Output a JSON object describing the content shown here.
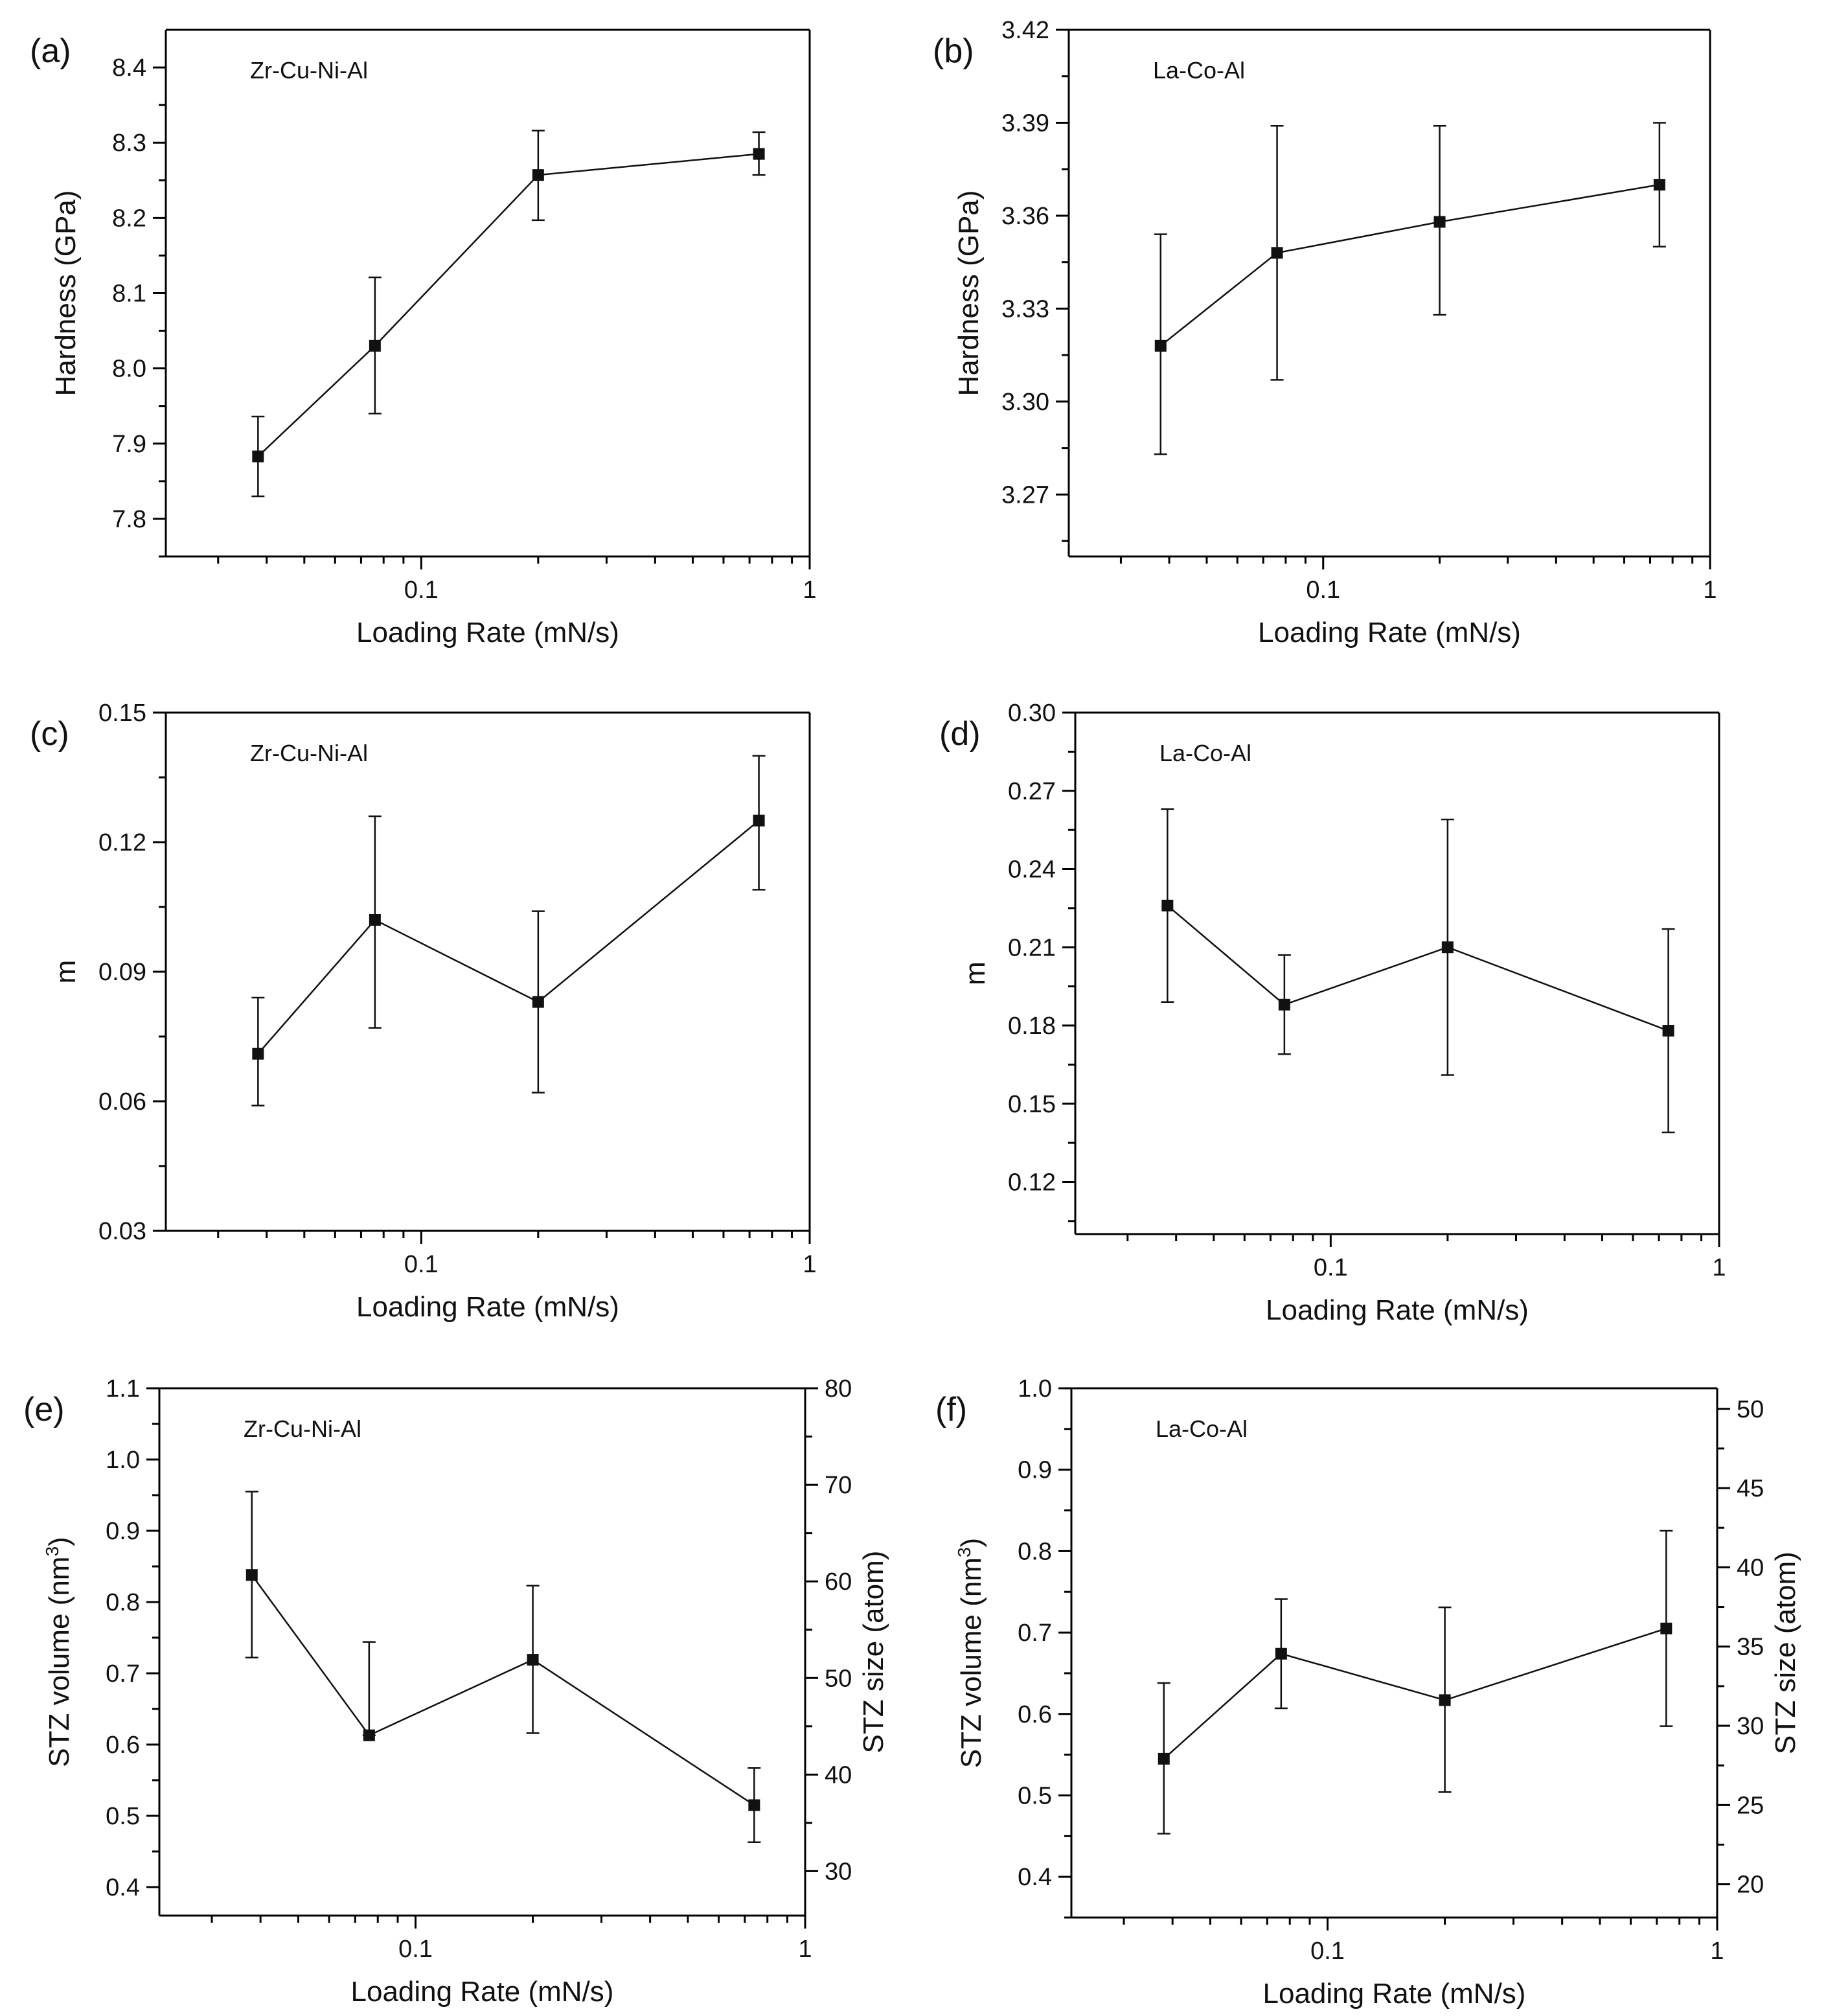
{
  "figure": {
    "colors": {
      "axis": "#000000",
      "series": "#111111",
      "background": "#ffffff"
    }
  },
  "chart_data": [
    {
      "type": "line",
      "panel": "(a)",
      "annotation": "Zr-Cu-Ni-Al",
      "xlabel": "Loading Rate (mN/s)",
      "xscale": "log",
      "xlim": [
        0.022,
        1
      ],
      "x_ticks": [
        0.1,
        1
      ],
      "x_tick_labels": [
        "0.1",
        "1"
      ],
      "ylabel": "Hardness (GPa)",
      "ylim": [
        7.75,
        8.45
      ],
      "y_ticks": [
        7.8,
        7.9,
        8.0,
        8.1,
        8.2,
        8.3,
        8.4
      ],
      "y_tick_labels": [
        "7.8",
        "7.9",
        "8.0",
        "8.1",
        "8.2",
        "8.3",
        "8.4"
      ],
      "series": [
        {
          "name": "Zr-Cu-Ni-Al",
          "x": [
            0.038,
            0.076,
            0.2,
            0.74
          ],
          "values": [
            7.883,
            8.03,
            8.257,
            8.285
          ],
          "err_low": [
            7.83,
            7.94,
            8.197,
            8.257
          ],
          "err_high": [
            7.936,
            8.121,
            8.316,
            8.314
          ]
        }
      ]
    },
    {
      "type": "line",
      "panel": "(b)",
      "annotation": "La-Co-Al",
      "xlabel": "Loading Rate (mN/s)",
      "xscale": "log",
      "xlim": [
        0.022,
        1
      ],
      "x_ticks": [
        0.1,
        1
      ],
      "x_tick_labels": [
        "0.1",
        "1"
      ],
      "ylabel": "Hardness (GPa)",
      "ylim": [
        3.25,
        3.42
      ],
      "y_ticks": [
        3.27,
        3.3,
        3.33,
        3.36,
        3.39,
        3.42
      ],
      "y_tick_labels": [
        "3.27",
        "3.30",
        "3.33",
        "3.36",
        "3.39",
        "3.42"
      ],
      "series": [
        {
          "name": "La-Co-Al",
          "x": [
            0.038,
            0.076,
            0.2,
            0.74
          ],
          "values": [
            3.318,
            3.348,
            3.358,
            3.37
          ],
          "err_low": [
            3.283,
            3.307,
            3.328,
            3.35
          ],
          "err_high": [
            3.354,
            3.389,
            3.389,
            3.39
          ]
        }
      ]
    },
    {
      "type": "line",
      "panel": "(c)",
      "annotation": "Zr-Cu-Ni-Al",
      "xlabel": "Loading Rate (mN/s)",
      "xscale": "log",
      "xlim": [
        0.022,
        1
      ],
      "x_ticks": [
        0.1,
        1
      ],
      "x_tick_labels": [
        "0.1",
        "1"
      ],
      "ylabel": "m",
      "ylim": [
        0.03,
        0.15
      ],
      "y_ticks": [
        0.03,
        0.06,
        0.09,
        0.12,
        0.15
      ],
      "y_tick_labels": [
        "0.03",
        "0.06",
        "0.09",
        "0.12",
        "0.15"
      ],
      "series": [
        {
          "name": "Zr-Cu-Ni-Al",
          "x": [
            0.038,
            0.076,
            0.2,
            0.74
          ],
          "values": [
            0.071,
            0.102,
            0.083,
            0.125
          ],
          "err_low": [
            0.059,
            0.077,
            0.062,
            0.109
          ],
          "err_high": [
            0.084,
            0.126,
            0.104,
            0.14
          ]
        }
      ]
    },
    {
      "type": "line",
      "panel": "(d)",
      "annotation": "La-Co-Al",
      "xlabel": "Loading Rate (mN/s)",
      "xscale": "log",
      "xlim": [
        0.022,
        1
      ],
      "x_ticks": [
        0.1,
        1
      ],
      "x_tick_labels": [
        "0.1",
        "1"
      ],
      "ylabel": "m",
      "ylim": [
        0.1,
        0.3
      ],
      "y_ticks": [
        0.12,
        0.15,
        0.18,
        0.21,
        0.24,
        0.27,
        0.3
      ],
      "y_tick_labels": [
        "0.12",
        "0.15",
        "0.18",
        "0.21",
        "0.24",
        "0.27",
        "0.30"
      ],
      "series": [
        {
          "name": "La-Co-Al",
          "x": [
            0.038,
            0.076,
            0.2,
            0.74
          ],
          "values": [
            0.226,
            0.188,
            0.21,
            0.178
          ],
          "err_low": [
            0.189,
            0.169,
            0.161,
            0.139
          ],
          "err_high": [
            0.263,
            0.207,
            0.259,
            0.217
          ]
        }
      ]
    },
    {
      "type": "line",
      "panel": "(e)",
      "annotation": "Zr-Cu-Ni-Al",
      "xlabel": "Loading Rate (mN/s)",
      "xscale": "log",
      "xlim": [
        0.022,
        1
      ],
      "x_ticks": [
        0.1,
        1
      ],
      "x_tick_labels": [
        "0.1",
        "1"
      ],
      "ylabel": "STZ volume (nm",
      "ylabel_sup": "3",
      "ylabel_close": ")",
      "ylim": [
        0.36,
        1.1
      ],
      "y_ticks": [
        0.4,
        0.5,
        0.6,
        0.7,
        0.8,
        0.9,
        1.0,
        1.1
      ],
      "y_tick_labels": [
        "0.4",
        "0.5",
        "0.6",
        "0.7",
        "0.8",
        "0.9",
        "1.0",
        "1.1"
      ],
      "y2label": "STZ size (atom)",
      "y2lim": [
        25.4,
        80
      ],
      "y2_ticks": [
        30,
        40,
        50,
        60,
        70,
        80
      ],
      "y2_tick_labels": [
        "30",
        "40",
        "50",
        "60",
        "70",
        "80"
      ],
      "series": [
        {
          "name": "Zr-Cu-Ni-Al",
          "x": [
            0.038,
            0.076,
            0.2,
            0.74
          ],
          "values": [
            0.838,
            0.613,
            0.719,
            0.515
          ],
          "err_low": [
            0.722,
            0.613,
            0.616,
            0.463
          ],
          "err_high": [
            0.955,
            0.744,
            0.823,
            0.567
          ]
        }
      ]
    },
    {
      "type": "line",
      "panel": "(f)",
      "annotation": "La-Co-Al",
      "xlabel": "Loading Rate (mN/s)",
      "xscale": "log",
      "xlim": [
        0.022,
        1
      ],
      "x_ticks": [
        0.1,
        1
      ],
      "x_tick_labels": [
        "0.1",
        "1"
      ],
      "ylabel": "STZ volume (nm",
      "ylabel_sup": "3",
      "ylabel_close": ")",
      "ylim": [
        0.35,
        1.0
      ],
      "y_ticks": [
        0.4,
        0.5,
        0.6,
        0.7,
        0.8,
        0.9,
        1.0
      ],
      "y_tick_labels": [
        "0.4",
        "0.5",
        "0.6",
        "0.7",
        "0.8",
        "0.9",
        "1.0"
      ],
      "y2label": "STZ size (atom)",
      "y2lim": [
        17.9,
        51.3
      ],
      "y2_ticks": [
        20,
        25,
        30,
        35,
        40,
        45,
        50
      ],
      "y2_tick_labels": [
        "20",
        "25",
        "30",
        "35",
        "40",
        "45",
        "50"
      ],
      "series": [
        {
          "name": "La-Co-Al",
          "x": [
            0.038,
            0.076,
            0.2,
            0.74
          ],
          "values": [
            0.545,
            0.674,
            0.617,
            0.705
          ],
          "err_low": [
            0.453,
            0.607,
            0.504,
            0.585
          ],
          "err_high": [
            0.638,
            0.741,
            0.731,
            0.825
          ]
        }
      ]
    }
  ]
}
